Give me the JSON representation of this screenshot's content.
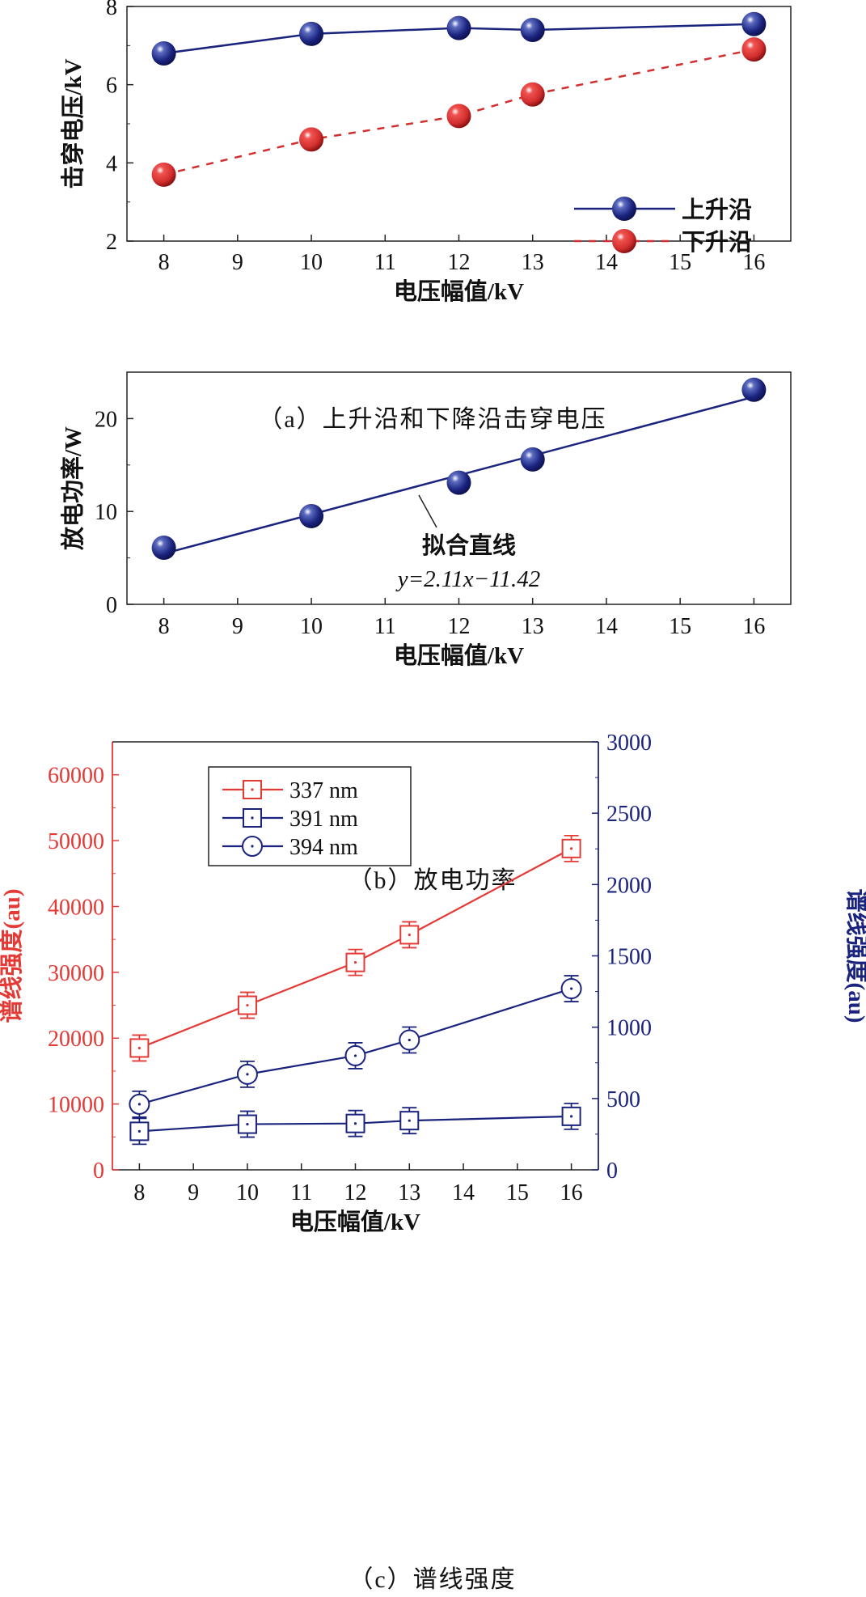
{
  "chart_data": [
    {
      "id": "a",
      "type": "line",
      "caption": "（a）上升沿和下降沿击穿电压",
      "xlabel": "电压幅值/kV",
      "ylabel": "击穿电压/kV",
      "xlim": [
        7.5,
        16.5
      ],
      "ylim": [
        2,
        8
      ],
      "xticks": [
        8,
        9,
        10,
        11,
        12,
        13,
        14,
        15,
        16
      ],
      "yticks": [
        2,
        4,
        6,
        8
      ],
      "x": [
        8,
        10,
        12,
        13,
        16
      ],
      "series": [
        {
          "name": "上升沿",
          "values": [
            6.8,
            7.3,
            7.45,
            7.4,
            7.55
          ],
          "color": "#1a237e",
          "dash": false
        },
        {
          "name": "下升沿",
          "values": [
            3.7,
            4.6,
            5.2,
            5.75,
            6.9
          ],
          "color": "#d32f2f",
          "dash": true
        }
      ],
      "legend": "right"
    },
    {
      "id": "b",
      "type": "scatter",
      "caption": "（b）放电功率",
      "xlabel": "电压幅值/kV",
      "ylabel": "放电功率/W",
      "xlim": [
        7.5,
        16.5
      ],
      "ylim": [
        0,
        25
      ],
      "xticks": [
        8,
        9,
        10,
        11,
        12,
        13,
        14,
        15,
        16
      ],
      "yticks": [
        0,
        10,
        20
      ],
      "x": [
        8,
        10,
        12,
        13,
        16
      ],
      "values": [
        6.1,
        9.5,
        13.1,
        15.6,
        23.1
      ],
      "fit": {
        "label": "拟合直线",
        "equation": "y=2.11x−11.42",
        "slope": 2.11,
        "intercept": -11.42
      },
      "color": "#1a237e"
    },
    {
      "id": "c",
      "type": "line",
      "caption": "（c）谱线强度",
      "xlabel": "电压幅值/kV",
      "ylabel_left": "谱线强度(au)",
      "ylabel_right": "谱线强度(au)",
      "xlim": [
        7.5,
        16.5
      ],
      "ylim_left": [
        0,
        65000
      ],
      "ylim_right": [
        0,
        3000
      ],
      "xticks": [
        8,
        9,
        10,
        11,
        12,
        13,
        14,
        15,
        16
      ],
      "yticks_left": [
        0,
        10000,
        20000,
        30000,
        40000,
        50000,
        60000
      ],
      "yticks_right": [
        0,
        500,
        1000,
        1500,
        2000,
        2500,
        3000
      ],
      "x": [
        8,
        10,
        12,
        13,
        16
      ],
      "series": [
        {
          "name": "337 nm",
          "axis": "left",
          "values": [
            18500,
            25000,
            31500,
            35700,
            48800
          ],
          "marker": "square",
          "color": "#e53935"
        },
        {
          "name": "391 nm",
          "axis": "right",
          "values": [
            270,
            320,
            325,
            345,
            375
          ],
          "marker": "square",
          "color": "#1a237e"
        },
        {
          "name": "394 nm",
          "axis": "right",
          "values": [
            460,
            670,
            800,
            910,
            1270
          ],
          "marker": "circle",
          "color": "#1a237e"
        }
      ],
      "left_color": "#e53935",
      "right_color": "#1a237e",
      "legend": "top-left"
    }
  ]
}
